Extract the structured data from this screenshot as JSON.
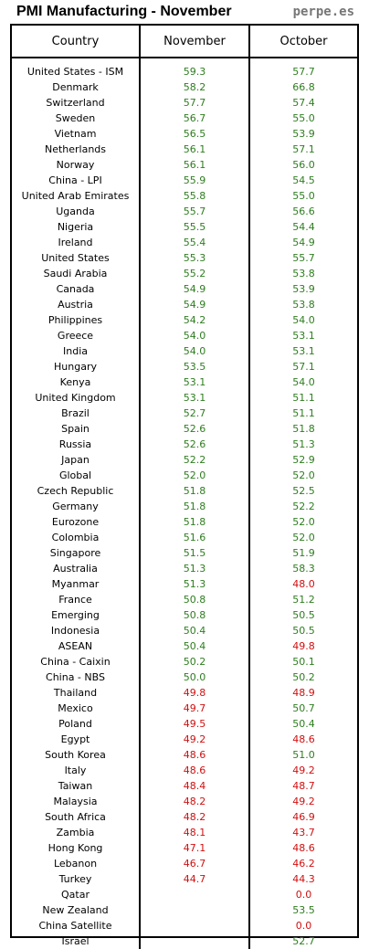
{
  "title": "PMI Manufacturing - November",
  "brand": "perpe.es",
  "colors": {
    "above50": "#2e7d1f",
    "below50": "#d01010"
  },
  "columns": [
    "Country",
    "November",
    "October"
  ],
  "rows": [
    [
      "United States - ISM",
      "59.3",
      "57.7"
    ],
    [
      "Denmark",
      "58.2",
      "66.8"
    ],
    [
      "Switzerland",
      "57.7",
      "57.4"
    ],
    [
      "Sweden",
      "56.7",
      "55.0"
    ],
    [
      "Vietnam",
      "56.5",
      "53.9"
    ],
    [
      "Netherlands",
      "56.1",
      "57.1"
    ],
    [
      "Norway",
      "56.1",
      "56.0"
    ],
    [
      "China - LPI",
      "55.9",
      "54.5"
    ],
    [
      "United Arab Emirates",
      "55.8",
      "55.0"
    ],
    [
      "Uganda",
      "55.7",
      "56.6"
    ],
    [
      "Nigeria",
      "55.5",
      "54.4"
    ],
    [
      "Ireland",
      "55.4",
      "54.9"
    ],
    [
      "United States",
      "55.3",
      "55.7"
    ],
    [
      "Saudi Arabia",
      "55.2",
      "53.8"
    ],
    [
      "Canada",
      "54.9",
      "53.9"
    ],
    [
      "Austria",
      "54.9",
      "53.8"
    ],
    [
      "Philippines",
      "54.2",
      "54.0"
    ],
    [
      "Greece",
      "54.0",
      "53.1"
    ],
    [
      "India",
      "54.0",
      "53.1"
    ],
    [
      "Hungary",
      "53.5",
      "57.1"
    ],
    [
      "Kenya",
      "53.1",
      "54.0"
    ],
    [
      "United Kingdom",
      "53.1",
      "51.1"
    ],
    [
      "Brazil",
      "52.7",
      "51.1"
    ],
    [
      "Spain",
      "52.6",
      "51.8"
    ],
    [
      "Russia",
      "52.6",
      "51.3"
    ],
    [
      "Japan",
      "52.2",
      "52.9"
    ],
    [
      "Global",
      "52.0",
      "52.0"
    ],
    [
      "Czech Republic",
      "51.8",
      "52.5"
    ],
    [
      "Germany",
      "51.8",
      "52.2"
    ],
    [
      "Eurozone",
      "51.8",
      "52.0"
    ],
    [
      "Colombia",
      "51.6",
      "52.0"
    ],
    [
      "Singapore",
      "51.5",
      "51.9"
    ],
    [
      "Australia",
      "51.3",
      "58.3"
    ],
    [
      "Myanmar",
      "51.3",
      "48.0"
    ],
    [
      "France",
      "50.8",
      "51.2"
    ],
    [
      "Emerging",
      "50.8",
      "50.5"
    ],
    [
      "Indonesia",
      "50.4",
      "50.5"
    ],
    [
      "ASEAN",
      "50.4",
      "49.8"
    ],
    [
      "China - Caixin",
      "50.2",
      "50.1"
    ],
    [
      "China - NBS",
      "50.0",
      "50.2"
    ],
    [
      "Thailand",
      "49.8",
      "48.9"
    ],
    [
      "Mexico",
      "49.7",
      "50.7"
    ],
    [
      "Poland",
      "49.5",
      "50.4"
    ],
    [
      "Egypt",
      "49.2",
      "48.6"
    ],
    [
      "South Korea",
      "48.6",
      "51.0"
    ],
    [
      "Italy",
      "48.6",
      "49.2"
    ],
    [
      "Taiwan",
      "48.4",
      "48.7"
    ],
    [
      "Malaysia",
      "48.2",
      "49.2"
    ],
    [
      "South Africa",
      "48.2",
      "46.9"
    ],
    [
      "Zambia",
      "48.1",
      "43.7"
    ],
    [
      "Hong Kong",
      "47.1",
      "48.6"
    ],
    [
      "Lebanon",
      "46.7",
      "46.2"
    ],
    [
      "Turkey",
      "44.7",
      "44.3"
    ],
    [
      "Qatar",
      "",
      "0.0"
    ],
    [
      "New Zealand",
      "",
      "53.5"
    ],
    [
      "China Satellite",
      "",
      "0.0"
    ],
    [
      "Israel",
      "",
      "52.7"
    ]
  ]
}
